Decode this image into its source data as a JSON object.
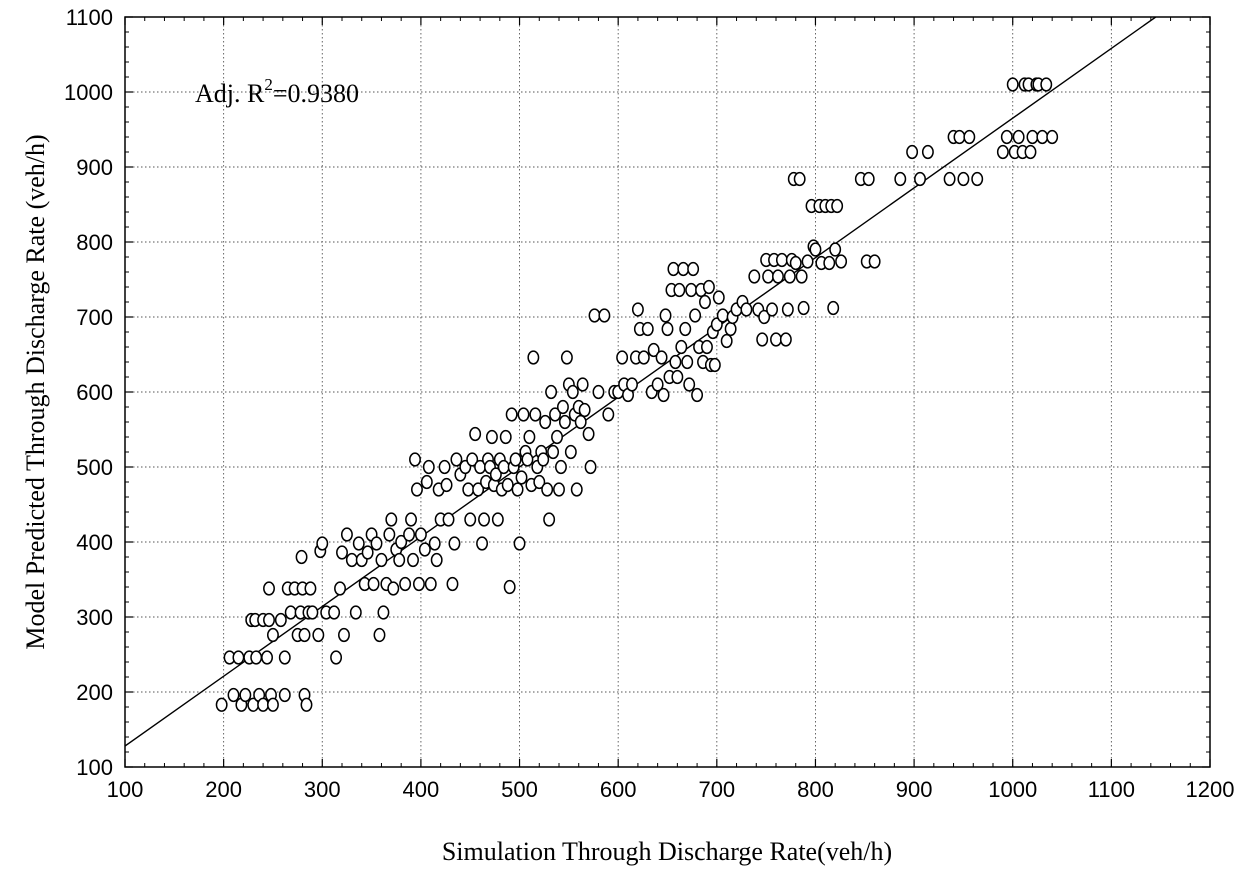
{
  "chart_data": {
    "type": "scatter",
    "title": "",
    "xlabel": "Simulation Through Discharge Rate(veh/h)",
    "ylabel": "Model Predicted Through Discharge Rate (veh/h)",
    "xlim": [
      100,
      1200
    ],
    "ylim": [
      100,
      1100
    ],
    "xticks": [
      "100",
      "200",
      "300",
      "400",
      "500",
      "600",
      "700",
      "800",
      "900",
      "1000",
      "1100",
      "1200"
    ],
    "yticks": [
      "100",
      "200",
      "300",
      "400",
      "500",
      "600",
      "700",
      "800",
      "900",
      "1000",
      "1100"
    ],
    "grid": true,
    "annotation": {
      "prefix": "Adj. R",
      "superscript": "2",
      "suffix": "=0.9380"
    },
    "fit_line": {
      "x": [
        100,
        1145
      ],
      "y": [
        128,
        1100
      ]
    },
    "marker": "open-circle",
    "points": [
      [
        198,
        183
      ],
      [
        206,
        246
      ],
      [
        210,
        196
      ],
      [
        215,
        246
      ],
      [
        218,
        183
      ],
      [
        222,
        196
      ],
      [
        226,
        246
      ],
      [
        230,
        183
      ],
      [
        233,
        246
      ],
      [
        236,
        196
      ],
      [
        240,
        183
      ],
      [
        244,
        246
      ],
      [
        248,
        196
      ],
      [
        250,
        183
      ],
      [
        228,
        296
      ],
      [
        232,
        296
      ],
      [
        240,
        296
      ],
      [
        246,
        296
      ],
      [
        246,
        338
      ],
      [
        250,
        276
      ],
      [
        258,
        296
      ],
      [
        262,
        246
      ],
      [
        262,
        196
      ],
      [
        265,
        338
      ],
      [
        268,
        306
      ],
      [
        272,
        338
      ],
      [
        275,
        276
      ],
      [
        278,
        306
      ],
      [
        280,
        338
      ],
      [
        282,
        196
      ],
      [
        284,
        183
      ],
      [
        286,
        306
      ],
      [
        288,
        338
      ],
      [
        279,
        380
      ],
      [
        282,
        276
      ],
      [
        290,
        306
      ],
      [
        296,
        276
      ],
      [
        298,
        388
      ],
      [
        300,
        398
      ],
      [
        304,
        306
      ],
      [
        312,
        306
      ],
      [
        314,
        246
      ],
      [
        318,
        338
      ],
      [
        320,
        386
      ],
      [
        322,
        276
      ],
      [
        325,
        410
      ],
      [
        330,
        376
      ],
      [
        334,
        306
      ],
      [
        337,
        398
      ],
      [
        340,
        376
      ],
      [
        343,
        344
      ],
      [
        346,
        386
      ],
      [
        350,
        410
      ],
      [
        352,
        344
      ],
      [
        355,
        398
      ],
      [
        358,
        276
      ],
      [
        360,
        376
      ],
      [
        362,
        306
      ],
      [
        365,
        344
      ],
      [
        368,
        410
      ],
      [
        370,
        430
      ],
      [
        372,
        338
      ],
      [
        375,
        390
      ],
      [
        378,
        376
      ],
      [
        380,
        400
      ],
      [
        384,
        344
      ],
      [
        388,
        410
      ],
      [
        390,
        430
      ],
      [
        392,
        376
      ],
      [
        394,
        510
      ],
      [
        396,
        470
      ],
      [
        398,
        344
      ],
      [
        400,
        410
      ],
      [
        404,
        390
      ],
      [
        406,
        480
      ],
      [
        408,
        500
      ],
      [
        410,
        344
      ],
      [
        414,
        398
      ],
      [
        416,
        376
      ],
      [
        418,
        470
      ],
      [
        420,
        430
      ],
      [
        424,
        500
      ],
      [
        426,
        476
      ],
      [
        428,
        430
      ],
      [
        432,
        344
      ],
      [
        434,
        398
      ],
      [
        436,
        510
      ],
      [
        440,
        490
      ],
      [
        445,
        500
      ],
      [
        448,
        470
      ],
      [
        450,
        430
      ],
      [
        452,
        510
      ],
      [
        455,
        544
      ],
      [
        458,
        470
      ],
      [
        460,
        500
      ],
      [
        462,
        398
      ],
      [
        464,
        430
      ],
      [
        466,
        480
      ],
      [
        468,
        510
      ],
      [
        470,
        500
      ],
      [
        472,
        540
      ],
      [
        474,
        476
      ],
      [
        476,
        490
      ],
      [
        478,
        430
      ],
      [
        480,
        510
      ],
      [
        482,
        470
      ],
      [
        484,
        500
      ],
      [
        486,
        540
      ],
      [
        488,
        476
      ],
      [
        490,
        340
      ],
      [
        492,
        570
      ],
      [
        494,
        500
      ],
      [
        496,
        510
      ],
      [
        498,
        470
      ],
      [
        500,
        398
      ],
      [
        502,
        486
      ],
      [
        504,
        570
      ],
      [
        506,
        520
      ],
      [
        508,
        510
      ],
      [
        510,
        540
      ],
      [
        512,
        476
      ],
      [
        514,
        646
      ],
      [
        516,
        570
      ],
      [
        518,
        500
      ],
      [
        520,
        480
      ],
      [
        522,
        520
      ],
      [
        524,
        510
      ],
      [
        526,
        560
      ],
      [
        528,
        470
      ],
      [
        530,
        430
      ],
      [
        532,
        600
      ],
      [
        534,
        520
      ],
      [
        536,
        570
      ],
      [
        538,
        540
      ],
      [
        540,
        470
      ],
      [
        542,
        500
      ],
      [
        544,
        580
      ],
      [
        546,
        560
      ],
      [
        548,
        646
      ],
      [
        550,
        610
      ],
      [
        552,
        520
      ],
      [
        554,
        600
      ],
      [
        556,
        570
      ],
      [
        558,
        470
      ],
      [
        560,
        580
      ],
      [
        562,
        560
      ],
      [
        564,
        610
      ],
      [
        566,
        576
      ],
      [
        570,
        544
      ],
      [
        572,
        500
      ],
      [
        576,
        702
      ],
      [
        580,
        600
      ],
      [
        586,
        702
      ],
      [
        590,
        570
      ],
      [
        596,
        600
      ],
      [
        600,
        600
      ],
      [
        604,
        646
      ],
      [
        606,
        610
      ],
      [
        610,
        596
      ],
      [
        614,
        610
      ],
      [
        618,
        646
      ],
      [
        620,
        710
      ],
      [
        622,
        684
      ],
      [
        626,
        646
      ],
      [
        630,
        684
      ],
      [
        634,
        600
      ],
      [
        636,
        656
      ],
      [
        640,
        610
      ],
      [
        644,
        646
      ],
      [
        646,
        596
      ],
      [
        648,
        702
      ],
      [
        650,
        684
      ],
      [
        652,
        620
      ],
      [
        654,
        736
      ],
      [
        656,
        764
      ],
      [
        658,
        640
      ],
      [
        660,
        620
      ],
      [
        662,
        736
      ],
      [
        664,
        660
      ],
      [
        666,
        764
      ],
      [
        668,
        684
      ],
      [
        670,
        640
      ],
      [
        672,
        610
      ],
      [
        674,
        736
      ],
      [
        676,
        764
      ],
      [
        678,
        702
      ],
      [
        680,
        596
      ],
      [
        682,
        660
      ],
      [
        684,
        736
      ],
      [
        686,
        640
      ],
      [
        688,
        720
      ],
      [
        690,
        660
      ],
      [
        692,
        740
      ],
      [
        694,
        636
      ],
      [
        696,
        680
      ],
      [
        698,
        636
      ],
      [
        700,
        690
      ],
      [
        702,
        726
      ],
      [
        706,
        702
      ],
      [
        710,
        668
      ],
      [
        714,
        684
      ],
      [
        716,
        700
      ],
      [
        720,
        710
      ],
      [
        726,
        720
      ],
      [
        730,
        710
      ],
      [
        738,
        754
      ],
      [
        742,
        710
      ],
      [
        746,
        670
      ],
      [
        748,
        700
      ],
      [
        750,
        776
      ],
      [
        752,
        754
      ],
      [
        756,
        710
      ],
      [
        758,
        776
      ],
      [
        760,
        670
      ],
      [
        762,
        754
      ],
      [
        766,
        776
      ],
      [
        770,
        670
      ],
      [
        772,
        710
      ],
      [
        774,
        754
      ],
      [
        776,
        776
      ],
      [
        778,
        884
      ],
      [
        780,
        772
      ],
      [
        784,
        884
      ],
      [
        786,
        754
      ],
      [
        788,
        712
      ],
      [
        792,
        774
      ],
      [
        796,
        848
      ],
      [
        798,
        794
      ],
      [
        800,
        790
      ],
      [
        804,
        848
      ],
      [
        806,
        772
      ],
      [
        810,
        848
      ],
      [
        814,
        772
      ],
      [
        816,
        848
      ],
      [
        818,
        712
      ],
      [
        820,
        790
      ],
      [
        822,
        848
      ],
      [
        826,
        774
      ],
      [
        846,
        884
      ],
      [
        852,
        774
      ],
      [
        854,
        884
      ],
      [
        860,
        774
      ],
      [
        886,
        884
      ],
      [
        898,
        920
      ],
      [
        906,
        884
      ],
      [
        914,
        920
      ],
      [
        936,
        884
      ],
      [
        940,
        940
      ],
      [
        946,
        940
      ],
      [
        950,
        884
      ],
      [
        956,
        940
      ],
      [
        964,
        884
      ],
      [
        990,
        920
      ],
      [
        994,
        940
      ],
      [
        1000,
        1010
      ],
      [
        1002,
        920
      ],
      [
        1006,
        940
      ],
      [
        1010,
        920
      ],
      [
        1012,
        1010
      ],
      [
        1016,
        1010
      ],
      [
        1018,
        920
      ],
      [
        1020,
        940
      ],
      [
        1024,
        1010
      ],
      [
        1026,
        1010
      ],
      [
        1030,
        940
      ],
      [
        1034,
        1010
      ],
      [
        1040,
        940
      ]
    ]
  }
}
